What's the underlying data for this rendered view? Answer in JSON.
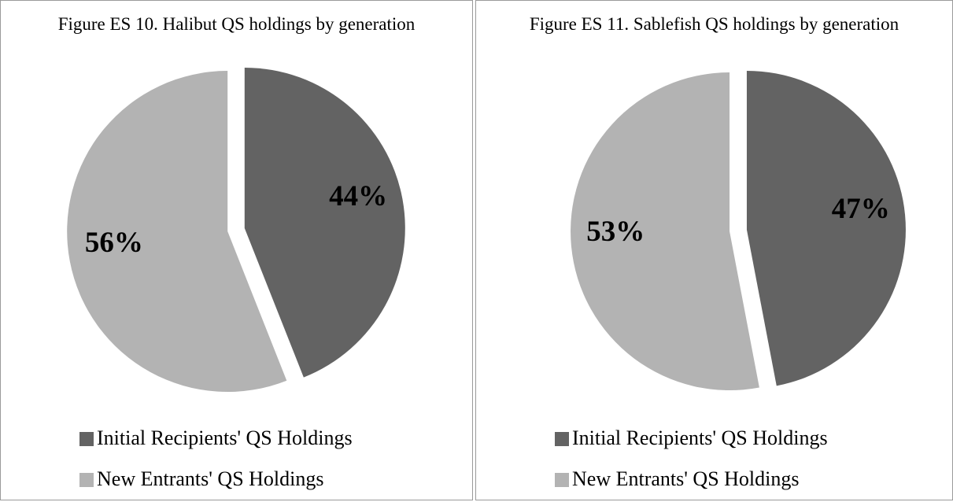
{
  "chart_data": [
    {
      "type": "pie",
      "title": "Figure ES 10. Halibut QS holdings by generation",
      "categories": [
        "Initial Recipients' QS Holdings",
        "New Entrants' QS Holdings"
      ],
      "values": [
        44,
        56
      ],
      "value_labels": [
        "44%",
        "56%"
      ],
      "colors": [
        "#636363",
        "#b3b3b3"
      ],
      "legend": "bottom"
    },
    {
      "type": "pie",
      "title": "Figure ES 11. Sablefish QS holdings by generation",
      "categories": [
        "Initial Recipients' QS Holdings",
        "New Entrants' QS Holdings"
      ],
      "values": [
        47,
        53
      ],
      "value_labels": [
        "47%",
        "53%"
      ],
      "colors": [
        "#636363",
        "#b3b3b3"
      ],
      "legend": "bottom"
    }
  ]
}
